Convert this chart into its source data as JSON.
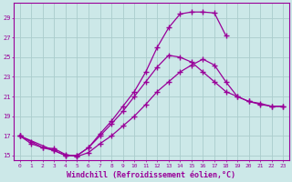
{
  "background_color": "#cce8e8",
  "grid_color": "#aacccc",
  "line_color": "#990099",
  "marker": "+",
  "marker_size": 4,
  "linewidth": 0.9,
  "xlabel": "Windchill (Refroidissement éolien,°C)",
  "xlabel_fontsize": 6.0,
  "ytick_labels": [
    "15",
    "17",
    "19",
    "21",
    "23",
    "25",
    "27",
    "29"
  ],
  "ytick_values": [
    15,
    17,
    19,
    21,
    23,
    25,
    27,
    29
  ],
  "xtick_values": [
    0,
    1,
    2,
    3,
    4,
    5,
    6,
    7,
    8,
    9,
    10,
    11,
    12,
    13,
    14,
    15,
    16,
    17,
    18,
    19,
    20,
    21,
    22,
    23
  ],
  "xlim": [
    -0.5,
    23.5
  ],
  "ylim": [
    14.5,
    30.5
  ],
  "line1_x": [
    0,
    1,
    2,
    3,
    4,
    5,
    6,
    7,
    8,
    9,
    10,
    11,
    12,
    13,
    14,
    15,
    16,
    17,
    18,
    19,
    20,
    21,
    22,
    23
  ],
  "line1_y": [
    17.0,
    16.4,
    15.8,
    15.7,
    15.1,
    14.9,
    15.3,
    16.2,
    17.0,
    18.0,
    19.0,
    20.2,
    21.5,
    22.5,
    23.5,
    24.2,
    24.8,
    24.2,
    22.5,
    21.0,
    20.5,
    20.2,
    20.0,
    20.0
  ],
  "line2_x": [
    0,
    3,
    4,
    5,
    6,
    7,
    8,
    9,
    10,
    11,
    12,
    13,
    14,
    15,
    16,
    17,
    18
  ],
  "line2_y": [
    17.0,
    15.5,
    15.0,
    15.0,
    15.8,
    17.2,
    18.5,
    20.0,
    21.5,
    23.5,
    26.0,
    28.0,
    29.4,
    29.6,
    29.6,
    29.5,
    27.2
  ],
  "line3_x": [
    0,
    1,
    2,
    3,
    4,
    5,
    6,
    7,
    8,
    9,
    10,
    11,
    12,
    13,
    14,
    15,
    16,
    17,
    18,
    19,
    20,
    21,
    22,
    23
  ],
  "line3_y": [
    17.0,
    16.2,
    15.8,
    15.5,
    15.0,
    15.0,
    15.8,
    17.0,
    18.2,
    19.5,
    21.0,
    22.5,
    24.0,
    25.2,
    25.0,
    24.5,
    23.5,
    22.5,
    21.5,
    21.0,
    20.5,
    20.3,
    20.0,
    20.0
  ]
}
